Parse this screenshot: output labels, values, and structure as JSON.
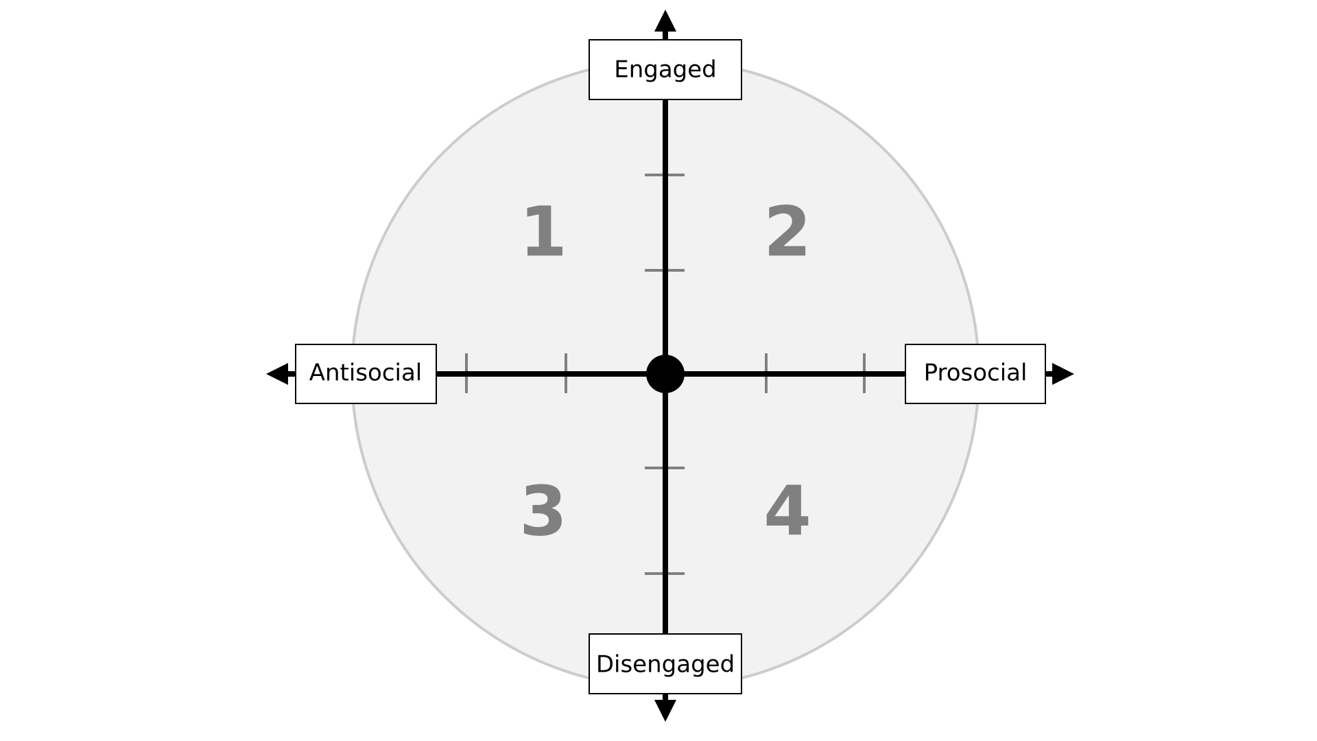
{
  "axes": {
    "top_label": "Engaged",
    "bottom_label": "Disengaged",
    "left_label": "Antisocial",
    "right_label": "Prosocial"
  },
  "quadrants": [
    {
      "number": "1"
    },
    {
      "number": "2"
    },
    {
      "number": "3"
    },
    {
      "number": "4"
    }
  ],
  "colors": {
    "circle_fill": "#f2f2f2",
    "circle_stroke": "#cccccc",
    "axis": "#000000",
    "tick": "#808080",
    "quadrant_number": "#808080",
    "label_box_fill": "#ffffff",
    "label_box_stroke": "#000000"
  }
}
